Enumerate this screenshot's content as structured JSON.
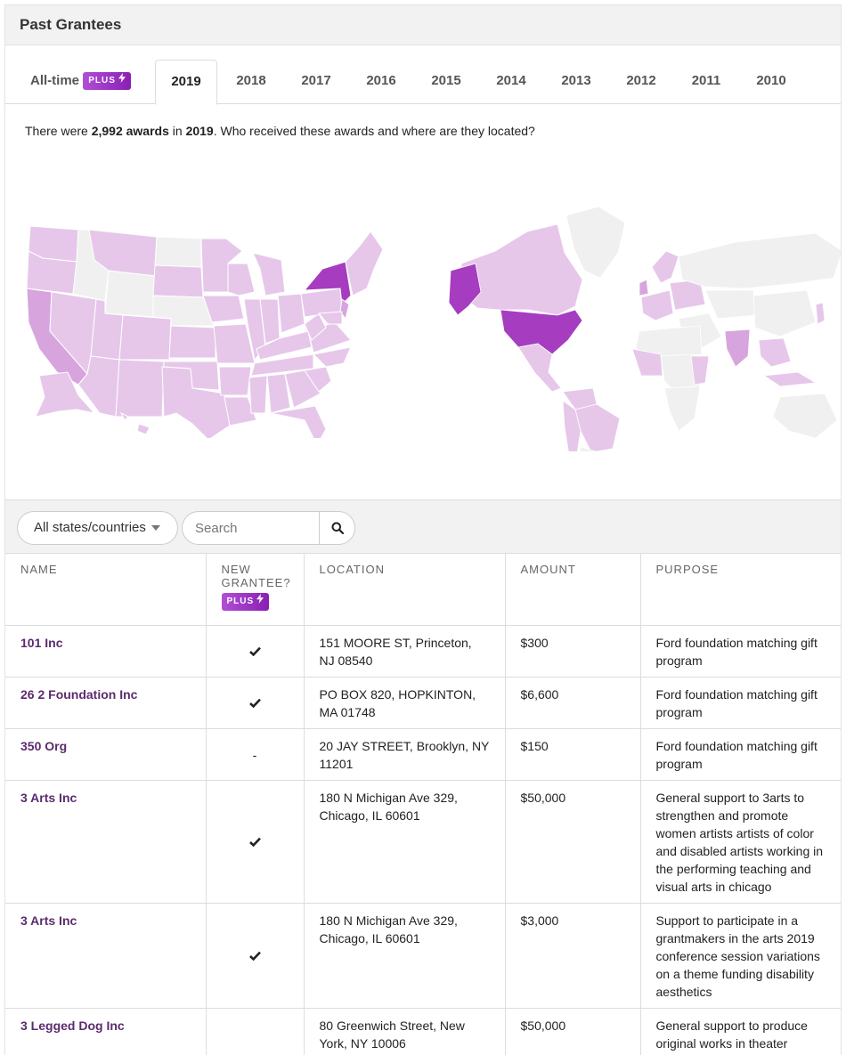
{
  "panel": {
    "title": "Past Grantees"
  },
  "tabs": [
    {
      "label": "All-time",
      "badge": "PLUS"
    },
    {
      "label": "2019",
      "active": true
    },
    {
      "label": "2018"
    },
    {
      "label": "2017"
    },
    {
      "label": "2016"
    },
    {
      "label": "2015"
    },
    {
      "label": "2014"
    },
    {
      "label": "2013"
    },
    {
      "label": "2012"
    },
    {
      "label": "2011"
    },
    {
      "label": "2010"
    }
  ],
  "summary": {
    "prefix": "There were ",
    "count": "2,992 awards",
    "middle": " in ",
    "year": "2019",
    "suffix": ". Who received these awards and where are they located?"
  },
  "maps": {
    "colors": {
      "none": "#f0f0f0",
      "low": "#e6c7ea",
      "mid": "#d7a4de",
      "high": "#a63cbf",
      "border": "#ffffff"
    }
  },
  "filters": {
    "location_select": "All states/countries",
    "search_placeholder": "Search",
    "search_icon": "search-icon"
  },
  "table": {
    "headers": {
      "name": "NAME",
      "new_grantee_1": "NEW",
      "new_grantee_2": "GRANTEE?",
      "new_grantee_badge": "PLUS",
      "location": "LOCATION",
      "amount": "AMOUNT",
      "purpose": "PURPOSE"
    },
    "rows": [
      {
        "name": "101 Inc",
        "new": "check",
        "location": "151 MOORE ST, Princeton, NJ 08540",
        "amount": "$300",
        "purpose": "Ford foundation matching gift program"
      },
      {
        "name": "26 2 Foundation Inc",
        "new": "check",
        "location": "PO BOX 820, HOPKINTON, MA 01748",
        "amount": "$6,600",
        "purpose": "Ford foundation matching gift program"
      },
      {
        "name": "350 Org",
        "new": "-",
        "location": "20 JAY STREET, Brooklyn, NY 11201",
        "amount": "$150",
        "purpose": "Ford foundation matching gift program"
      },
      {
        "name": "3 Arts Inc",
        "new": "check",
        "location": "180 N Michigan Ave 329, Chicago, IL 60601",
        "amount": "$50,000",
        "purpose": "General support to 3arts to strengthen and promote women artists artists of color and disabled artists working in the performing teaching and visual arts in chicago"
      },
      {
        "name": "3 Arts Inc",
        "new": "check",
        "location": "180 N Michigan Ave 329, Chicago, IL 60601",
        "amount": "$3,000",
        "purpose": "Support to participate in a grantmakers in the arts 2019 conference session variations on a theme funding disability aesthetics"
      },
      {
        "name": "3 Legged Dog Inc",
        "new": "",
        "location": "80 Greenwich Street, New York, NY 10006",
        "amount": "$50,000",
        "purpose": "General support to produce original works in theater performance dance media and"
      }
    ]
  }
}
